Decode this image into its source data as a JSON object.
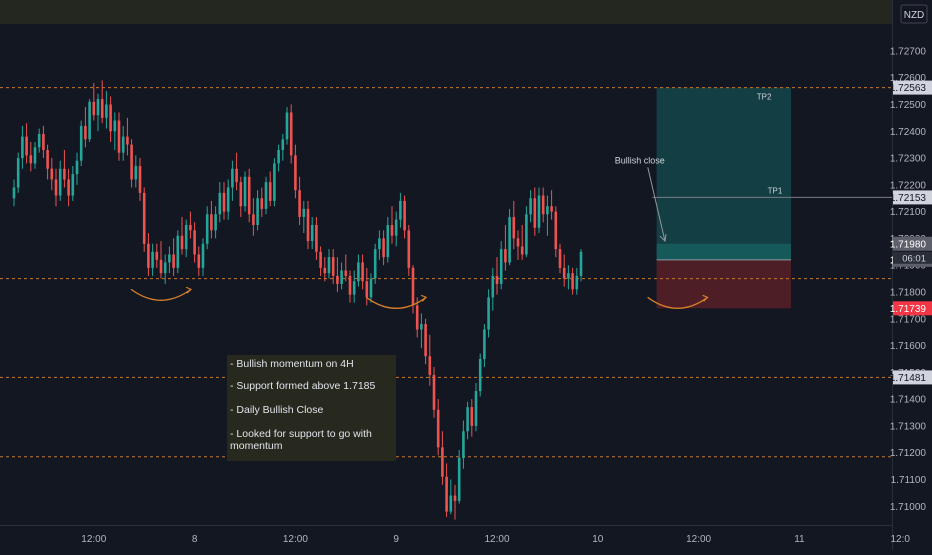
{
  "currency": "NZD",
  "chart_data": {
    "type": "candlestick",
    "title": "",
    "xlabel": "",
    "ylabel": "",
    "ylim": [
      1.7093,
      1.7289
    ],
    "grid": false,
    "legend": "none",
    "y_ticks": [
      "1.72700",
      "1.72600",
      "1.72500",
      "1.72400",
      "1.72300",
      "1.72200",
      "1.72100",
      "1.72000",
      "1.71900",
      "1.71800",
      "1.71700",
      "1.71600",
      "1.71500",
      "1.71400",
      "1.71300",
      "1.71200",
      "1.71100",
      "1.71000"
    ],
    "x_ticks": [
      {
        "label": "12:00",
        "i": 19
      },
      {
        "label": "8",
        "i": 43
      },
      {
        "label": "12:00",
        "i": 67
      },
      {
        "label": "9",
        "i": 91
      },
      {
        "label": "12:00",
        "i": 115
      },
      {
        "label": "10",
        "i": 139
      },
      {
        "label": "12:00",
        "i": 163
      },
      {
        "label": "11",
        "i": 187
      },
      {
        "label": "12:0",
        "i": 211
      }
    ],
    "ohlc": [
      [
        1.7215,
        1.7222,
        1.7212,
        1.7219
      ],
      [
        1.7219,
        1.7232,
        1.7217,
        1.723
      ],
      [
        1.723,
        1.7242,
        1.7226,
        1.7238
      ],
      [
        1.7238,
        1.7243,
        1.7228,
        1.7231
      ],
      [
        1.7231,
        1.7236,
        1.7225,
        1.7228
      ],
      [
        1.7228,
        1.7236,
        1.7226,
        1.7234
      ],
      [
        1.7234,
        1.7241,
        1.7232,
        1.7239
      ],
      [
        1.7239,
        1.7242,
        1.723,
        1.7233
      ],
      [
        1.7233,
        1.7235,
        1.7222,
        1.7226
      ],
      [
        1.7226,
        1.723,
        1.7218,
        1.7222
      ],
      [
        1.7222,
        1.7226,
        1.7212,
        1.7216
      ],
      [
        1.7216,
        1.7229,
        1.7214,
        1.7226
      ],
      [
        1.7226,
        1.7233,
        1.7219,
        1.7222
      ],
      [
        1.7222,
        1.7226,
        1.7212,
        1.7216
      ],
      [
        1.7216,
        1.7227,
        1.7214,
        1.7224
      ],
      [
        1.7224,
        1.7232,
        1.722,
        1.7229
      ],
      [
        1.7229,
        1.7244,
        1.7227,
        1.7242
      ],
      [
        1.7242,
        1.7249,
        1.7234,
        1.7237
      ],
      [
        1.7237,
        1.7252,
        1.7236,
        1.7251
      ],
      [
        1.7251,
        1.7258,
        1.7244,
        1.7246
      ],
      [
        1.7246,
        1.7254,
        1.724,
        1.7252
      ],
      [
        1.7252,
        1.7259,
        1.7243,
        1.7245
      ],
      [
        1.7245,
        1.7255,
        1.7241,
        1.725
      ],
      [
        1.725,
        1.7253,
        1.7236,
        1.724
      ],
      [
        1.724,
        1.7247,
        1.7233,
        1.7244
      ],
      [
        1.7244,
        1.7247,
        1.7229,
        1.7232
      ],
      [
        1.7232,
        1.7242,
        1.7229,
        1.7238
      ],
      [
        1.7238,
        1.7245,
        1.7231,
        1.7235
      ],
      [
        1.7235,
        1.7237,
        1.7219,
        1.7222
      ],
      [
        1.7222,
        1.7231,
        1.7219,
        1.7227
      ],
      [
        1.7227,
        1.723,
        1.7214,
        1.7217
      ],
      [
        1.7217,
        1.7219,
        1.7195,
        1.7198
      ],
      [
        1.7198,
        1.7202,
        1.7186,
        1.7189
      ],
      [
        1.7189,
        1.7198,
        1.7186,
        1.7195
      ],
      [
        1.7195,
        1.7198,
        1.7189,
        1.7192
      ],
      [
        1.7192,
        1.7199,
        1.7185,
        1.7187
      ],
      [
        1.7187,
        1.7194,
        1.7183,
        1.7191
      ],
      [
        1.7191,
        1.7197,
        1.7187,
        1.7194
      ],
      [
        1.7194,
        1.72,
        1.7186,
        1.7189
      ],
      [
        1.7189,
        1.7203,
        1.7187,
        1.7201
      ],
      [
        1.7201,
        1.7208,
        1.7194,
        1.7196
      ],
      [
        1.7196,
        1.7207,
        1.7193,
        1.7205
      ],
      [
        1.7205,
        1.721,
        1.72,
        1.7203
      ],
      [
        1.7203,
        1.7206,
        1.7191,
        1.7194
      ],
      [
        1.7194,
        1.7197,
        1.7186,
        1.7189
      ],
      [
        1.7189,
        1.72,
        1.7186,
        1.7198
      ],
      [
        1.7198,
        1.7212,
        1.7196,
        1.7209
      ],
      [
        1.7209,
        1.7214,
        1.72,
        1.7203
      ],
      [
        1.7203,
        1.7212,
        1.72,
        1.7209
      ],
      [
        1.7209,
        1.7221,
        1.7206,
        1.7217
      ],
      [
        1.7217,
        1.7221,
        1.7207,
        1.721
      ],
      [
        1.721,
        1.7222,
        1.7207,
        1.7219
      ],
      [
        1.7219,
        1.7229,
        1.7214,
        1.7226
      ],
      [
        1.7226,
        1.7232,
        1.7218,
        1.7221
      ],
      [
        1.7221,
        1.7223,
        1.7208,
        1.7212
      ],
      [
        1.7212,
        1.7225,
        1.721,
        1.7223
      ],
      [
        1.7223,
        1.7226,
        1.7206,
        1.7209
      ],
      [
        1.7209,
        1.7215,
        1.7201,
        1.7205
      ],
      [
        1.7205,
        1.7218,
        1.7203,
        1.7215
      ],
      [
        1.7215,
        1.7219,
        1.7208,
        1.7211
      ],
      [
        1.7211,
        1.7223,
        1.7209,
        1.7221
      ],
      [
        1.7221,
        1.7225,
        1.7212,
        1.7214
      ],
      [
        1.7214,
        1.723,
        1.7212,
        1.7228
      ],
      [
        1.7228,
        1.7235,
        1.7225,
        1.7233
      ],
      [
        1.7233,
        1.7239,
        1.7229,
        1.7237
      ],
      [
        1.7237,
        1.7249,
        1.7235,
        1.7247
      ],
      [
        1.7247,
        1.725,
        1.7228,
        1.7231
      ],
      [
        1.7231,
        1.7235,
        1.7215,
        1.7218
      ],
      [
        1.7218,
        1.7223,
        1.7205,
        1.7208
      ],
      [
        1.7208,
        1.7214,
        1.7202,
        1.7211
      ],
      [
        1.7211,
        1.7214,
        1.7196,
        1.7199
      ],
      [
        1.7199,
        1.7208,
        1.7196,
        1.7205
      ],
      [
        1.7205,
        1.7208,
        1.7192,
        1.7195
      ],
      [
        1.7195,
        1.7197,
        1.7186,
        1.7189
      ],
      [
        1.7189,
        1.7193,
        1.7184,
        1.7187
      ],
      [
        1.7187,
        1.7196,
        1.7185,
        1.7193
      ],
      [
        1.7193,
        1.7196,
        1.7183,
        1.7186
      ],
      [
        1.7186,
        1.7193,
        1.718,
        1.7183
      ],
      [
        1.7183,
        1.7191,
        1.7181,
        1.7188
      ],
      [
        1.7188,
        1.7194,
        1.7184,
        1.7186
      ],
      [
        1.7186,
        1.7188,
        1.7176,
        1.7179
      ],
      [
        1.7179,
        1.7188,
        1.7176,
        1.7184
      ],
      [
        1.7184,
        1.7194,
        1.7182,
        1.7191
      ],
      [
        1.7191,
        1.7194,
        1.7181,
        1.7184
      ],
      [
        1.7184,
        1.7189,
        1.7175,
        1.7178
      ],
      [
        1.7178,
        1.7187,
        1.7176,
        1.7185
      ],
      [
        1.7185,
        1.7198,
        1.7183,
        1.7196
      ],
      [
        1.7196,
        1.7203,
        1.7192,
        1.72
      ],
      [
        1.72,
        1.7203,
        1.719,
        1.7193
      ],
      [
        1.7193,
        1.7208,
        1.7191,
        1.7205
      ],
      [
        1.7205,
        1.7212,
        1.7198,
        1.7201
      ],
      [
        1.7201,
        1.721,
        1.7197,
        1.7207
      ],
      [
        1.7207,
        1.7217,
        1.7204,
        1.7214
      ],
      [
        1.7214,
        1.7216,
        1.72,
        1.7203
      ],
      [
        1.7203,
        1.7205,
        1.7186,
        1.7189
      ],
      [
        1.7189,
        1.719,
        1.7172,
        1.7175
      ],
      [
        1.7175,
        1.7178,
        1.7163,
        1.7166
      ],
      [
        1.7166,
        1.7172,
        1.7159,
        1.7168
      ],
      [
        1.7168,
        1.717,
        1.7153,
        1.7156
      ],
      [
        1.7156,
        1.7164,
        1.7145,
        1.7149
      ],
      [
        1.7149,
        1.7152,
        1.7133,
        1.7136
      ],
      [
        1.7136,
        1.714,
        1.7119,
        1.7122
      ],
      [
        1.7122,
        1.7128,
        1.7108,
        1.7111
      ],
      [
        1.7111,
        1.7116,
        1.7096,
        1.7098
      ],
      [
        1.7098,
        1.711,
        1.7097,
        1.7104
      ],
      [
        1.7104,
        1.7108,
        1.7095,
        1.7102
      ],
      [
        1.7102,
        1.7121,
        1.7101,
        1.7118
      ],
      [
        1.7118,
        1.7132,
        1.7114,
        1.7128
      ],
      [
        1.7128,
        1.7139,
        1.7125,
        1.7137
      ],
      [
        1.7137,
        1.714,
        1.7126,
        1.713
      ],
      [
        1.713,
        1.7146,
        1.7128,
        1.7143
      ],
      [
        1.7143,
        1.7157,
        1.7141,
        1.7155
      ],
      [
        1.7155,
        1.7168,
        1.7152,
        1.7166
      ],
      [
        1.7166,
        1.7181,
        1.7163,
        1.7178
      ],
      [
        1.7178,
        1.7189,
        1.7173,
        1.7186
      ],
      [
        1.7186,
        1.7193,
        1.7179,
        1.7183
      ],
      [
        1.7183,
        1.7199,
        1.7181,
        1.7196
      ],
      [
        1.7196,
        1.7205,
        1.7188,
        1.7191
      ],
      [
        1.7191,
        1.7211,
        1.719,
        1.7208
      ],
      [
        1.7208,
        1.7214,
        1.7196,
        1.72
      ],
      [
        1.72,
        1.7203,
        1.7192,
        1.7197
      ],
      [
        1.7197,
        1.7205,
        1.7192,
        1.7194
      ],
      [
        1.7194,
        1.7212,
        1.7193,
        1.7209
      ],
      [
        1.7209,
        1.7218,
        1.7206,
        1.7215
      ],
      [
        1.7215,
        1.7219,
        1.7201,
        1.7204
      ],
      [
        1.7204,
        1.7219,
        1.7202,
        1.7216
      ],
      [
        1.7216,
        1.7219,
        1.7206,
        1.7209
      ],
      [
        1.7209,
        1.7216,
        1.7201,
        1.7212
      ],
      [
        1.7212,
        1.7218,
        1.7207,
        1.721
      ],
      [
        1.721,
        1.7212,
        1.7193,
        1.7196
      ],
      [
        1.7196,
        1.7198,
        1.7187,
        1.7189
      ],
      [
        1.7189,
        1.7194,
        1.7182,
        1.7185
      ],
      [
        1.7185,
        1.719,
        1.7181,
        1.7187
      ],
      [
        1.7187,
        1.7189,
        1.7179,
        1.7181
      ],
      [
        1.7181,
        1.7189,
        1.7179,
        1.7186
      ],
      [
        1.7186,
        1.7196,
        1.7184,
        1.7195
      ]
    ],
    "horizontal_levels": [
      {
        "value": 1.72563,
        "label": "1.72563"
      },
      {
        "value": 1.7185,
        "label": ""
      },
      {
        "value": 1.71481,
        "label": "1.71481"
      },
      {
        "value": 1.71185,
        "label": ""
      }
    ],
    "price_labels": [
      {
        "value": 1.72563,
        "text": "1.72563",
        "kind": "level"
      },
      {
        "value": 1.72153,
        "text": "1.72153",
        "kind": "tp1"
      },
      {
        "value": 1.7198,
        "text": "1.71980",
        "kind": "price"
      },
      {
        "value": 1.7192,
        "text": "1.71920",
        "kind": "entry"
      },
      {
        "value": 1.71739,
        "text": "1.71739",
        "kind": "stop"
      },
      {
        "value": 1.71481,
        "text": "1.71481",
        "kind": "level"
      }
    ],
    "countdown": "06:01",
    "position": {
      "entry": 1.7192,
      "target": 1.72563,
      "stop": 1.71739,
      "start_i": 153,
      "end_i": 185,
      "target_label": "TP2"
    },
    "tp1": {
      "value": 1.72153,
      "start_i": 152,
      "label": "TP1"
    },
    "annotation_close": {
      "text": "Bullish close",
      "i": 149,
      "value": 1.7228,
      "arrow_to_i": 155,
      "arrow_to_value": 1.7199
    },
    "arcs": [
      {
        "i": 35,
        "value": 1.7181
      },
      {
        "i": 91,
        "value": 1.7178
      },
      {
        "i": 158,
        "value": 1.7178
      }
    ],
    "text_box": {
      "lines": [
        "- Bullish momentum on 4H",
        "- Support formed above 1.7185",
        "- Daily Bullish Close",
        "- Looked for support to go with momentum"
      ]
    },
    "colors": {
      "bg": "#131722",
      "up": "#26a69a",
      "down": "#ef5350",
      "level": "#c8782a",
      "arc": "#d67e2a",
      "profit": "rgba(20,110,108,0.45)",
      "loss": "rgba(150,40,45,0.45)",
      "topbar": "#24271f",
      "note_bg": "#27291f"
    }
  }
}
